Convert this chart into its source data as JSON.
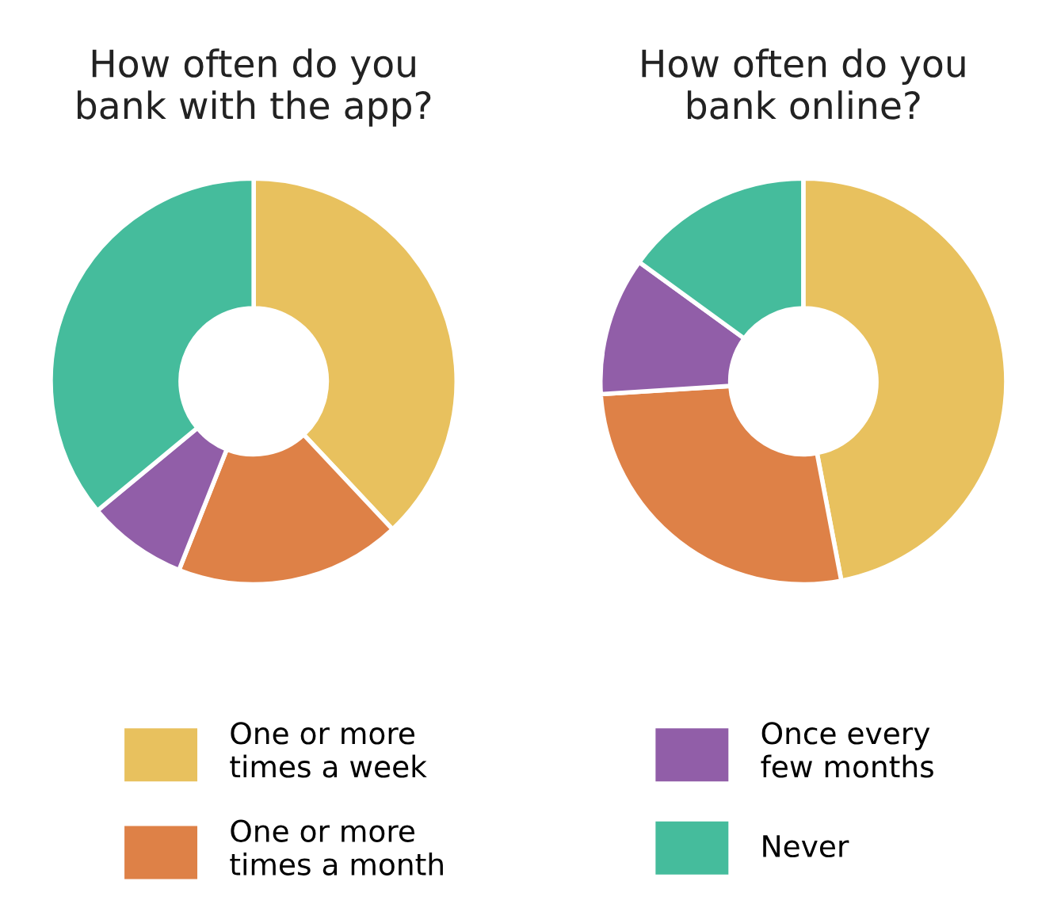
{
  "chart_data": [
    {
      "type": "donut",
      "title": "How often do you\nbank with the app?",
      "categories": [
        "One or more\ntimes a week",
        "One or more\ntimes a month",
        "Once every\nfew months",
        "Never"
      ],
      "values": [
        38,
        18,
        8,
        36
      ],
      "colors": [
        "#e8c15e",
        "#de8147",
        "#915ea8",
        "#45bc9c"
      ],
      "legend": "bottom"
    },
    {
      "type": "donut",
      "title": "How often do you\nbank online?",
      "categories": [
        null,
        null,
        null,
        null
      ],
      "values": [
        47,
        27,
        11,
        15
      ],
      "colors": [
        "#e8c15e",
        "#de8147",
        "#915ea8",
        "#45bc9c"
      ]
    }
  ]
}
